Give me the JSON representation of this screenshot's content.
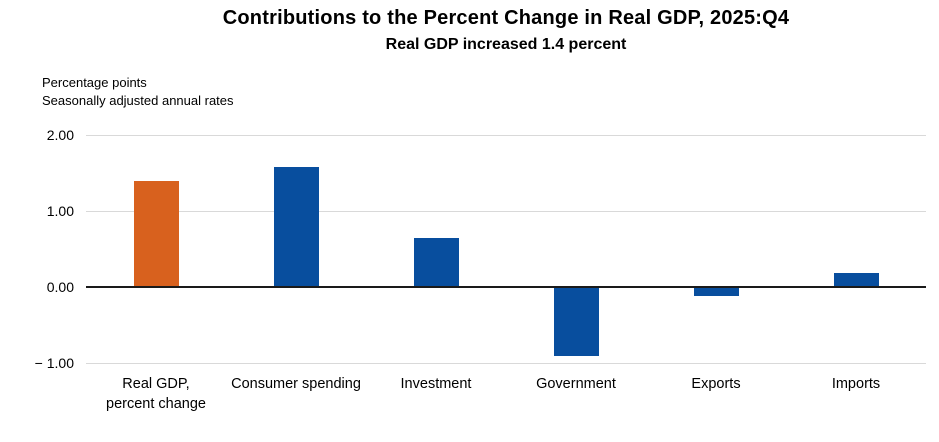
{
  "chart_data": {
    "type": "bar",
    "title": "Contributions to the Percent Change in Real GDP, 2025:Q4",
    "subtitle": "Real GDP increased 1.4 percent",
    "unit_note": [
      "Percentage points",
      "Seasonally adjusted annual rates"
    ],
    "categories": [
      "Real GDP,\npercent change",
      "Consumer spending",
      "Investment",
      "Government",
      "Exports",
      "Imports"
    ],
    "values": [
      1.4,
      1.58,
      0.64,
      -0.91,
      -0.12,
      0.19
    ],
    "bar_colors": [
      "#D8611E",
      "#084E9E",
      "#084E9E",
      "#084E9E",
      "#084E9E",
      "#084E9E"
    ],
    "yticks": [
      {
        "value": 2.0,
        "label": "2.00"
      },
      {
        "value": 1.0,
        "label": "1.00"
      },
      {
        "value": 0.0,
        "label": "0.00"
      },
      {
        "value": -1.0,
        "label": "− 1.00"
      }
    ],
    "ylim": [
      -1.0,
      2.0
    ],
    "xlabel": "",
    "ylabel": "Percentage points",
    "grid": true,
    "legend": "none"
  },
  "colors": {
    "highlight_bar": "#D8611E",
    "default_bar": "#084E9E",
    "gridline": "#D9D9D9",
    "zero_line": "#1A1A1A",
    "text": "#000000"
  }
}
